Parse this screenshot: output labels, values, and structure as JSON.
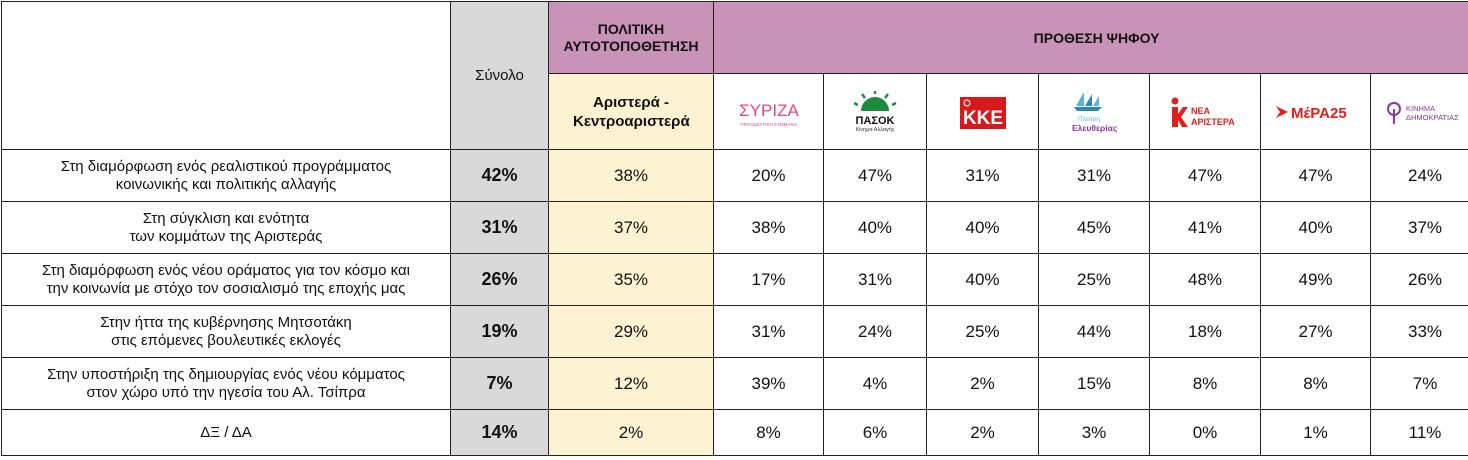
{
  "header": {
    "total_label": "Σύνολο",
    "political_group_label": "ΠΟΛΙΤΙΚΗ ΑΥΤΟΤΟΠΟΘΕΤΗΣΗ",
    "political_sub_label": "Αριστερά - Κεντροαριστερά",
    "vote_group_label": "ΠΡΟΘΕΣΗ ΨΗΦΟΥ"
  },
  "parties": [
    {
      "name": "ΣΥΡΙΖΑ",
      "logo_text": "ΣΥΡΙΖΑ",
      "logo_sub": "ΠΡΟΟΔΕΥΤΙΚΗ ΣΥΜΜΑΧΙΑ",
      "color": "#e8477c",
      "icon": "syriza-logo"
    },
    {
      "name": "ΠΑΣΟΚ",
      "logo_text": "ΠΑΣΟΚ",
      "logo_sub": "Κίνημα Αλλαγής",
      "color": "#1f8a3b",
      "icon": "pasok-sun-logo"
    },
    {
      "name": "ΚΚΕ",
      "logo_text": "ΚΚΕ",
      "color": "#d7191c",
      "icon": "kke-hammer-sickle-logo"
    },
    {
      "name": "Πλεύση Ελευθερίας",
      "logo_text": "Ελευθερίας",
      "logo_sub": "Πλεύση",
      "color": "#5ab5d6",
      "icon": "plefsi-ship-logo"
    },
    {
      "name": "ΝΕΑ ΑΡΙΣΤΕΡΑ",
      "logo_text": "ΑΡΙΣΤΕΡΑ",
      "logo_sub": "ΝΕΑ",
      "color": "#e0201b",
      "icon": "nea-aristera-logo"
    },
    {
      "name": "ΜέΡΑ25",
      "logo_text": "ΜέΡΑ25",
      "color": "#e0201b",
      "icon": "mera25-logo"
    },
    {
      "name": "Κίνημα Δημοκρατίας",
      "logo_text": "ΚΙΝΗΜΑ",
      "logo_sub": "ΔΗΜΟΚΡΑΤΙΑΣ",
      "color": "#8e3aa0",
      "icon": "kinima-dimokratias-logo"
    }
  ],
  "rows": [
    {
      "label_l1": "Στη διαμόρφωση ενός ρεαλιστικού προγράμματος",
      "label_l2": "κοινωνικής και πολιτικής αλλαγής",
      "total": "42%",
      "left": "38%",
      "values": [
        "20%",
        "47%",
        "31%",
        "31%",
        "47%",
        "47%",
        "24%"
      ]
    },
    {
      "label_l1": "Στη σύγκλιση και ενότητα",
      "label_l2": "των κομμάτων της Αριστεράς",
      "total": "31%",
      "left": "37%",
      "values": [
        "38%",
        "40%",
        "40%",
        "45%",
        "41%",
        "40%",
        "37%"
      ]
    },
    {
      "label_l1": "Στη διαμόρφωση ενός νέου οράματος για τον κόσμο και",
      "label_l2": "την κοινωνία με στόχο τον σοσιαλισμό της εποχής μας",
      "total": "26%",
      "left": "35%",
      "values": [
        "17%",
        "31%",
        "40%",
        "25%",
        "48%",
        "49%",
        "26%"
      ]
    },
    {
      "label_l1": "Στην ήττα της κυβέρνησης Μητσοτάκη",
      "label_l2": "στις επόμενες βουλευτικές εκλογές",
      "total": "19%",
      "left": "29%",
      "values": [
        "31%",
        "24%",
        "25%",
        "44%",
        "18%",
        "27%",
        "33%"
      ]
    },
    {
      "label_l1": "Στην υποστήριξη της δημιουργίας ενός νέου κόμματος",
      "label_l2": "στον χώρο υπό την ηγεσία του Αλ. Τσίπρα",
      "total": "7%",
      "left": "12%",
      "values": [
        "39%",
        "4%",
        "2%",
        "15%",
        "8%",
        "8%",
        "7%"
      ]
    },
    {
      "label_l1": "ΔΞ / ΔΑ",
      "label_l2": "",
      "total": "14%",
      "left": "2%",
      "values": [
        "8%",
        "6%",
        "2%",
        "3%",
        "0%",
        "1%",
        "11%"
      ]
    }
  ],
  "colors": {
    "header_purple": "#c993b8",
    "total_grey": "#d9d9d9",
    "left_cream": "#fdf3d3"
  },
  "chart_data": {
    "type": "table",
    "columns": [
      "Σύνολο",
      "Αριστερά - Κεντροαριστερά",
      "ΣΥΡΙΖΑ",
      "ΠΑΣΟΚ",
      "ΚΚΕ",
      "Πλεύση Ελευθερίας",
      "ΝΕΑ ΑΡΙΣΤΕΡΑ",
      "ΜέΡΑ25",
      "Κίνημα Δημοκρατίας"
    ],
    "row_labels": [
      "Στη διαμόρφωση ενός ρεαλιστικού προγράμματος κοινωνικής και πολιτικής αλλαγής",
      "Στη σύγκλιση και ενότητα των κομμάτων της Αριστεράς",
      "Στη διαμόρφωση ενός νέου οράματος για τον κόσμο και την κοινωνία με στόχο τον σοσιαλισμό της εποχής μας",
      "Στην ήττα της κυβέρνησης Μητσοτάκη στις επόμενες βουλευτικές εκλογές",
      "Στην υποστήριξη της δημιουργίας ενός νέου κόμματος στον χώρο υπό την ηγεσία του Αλ. Τσίπρα",
      "ΔΞ / ΔΑ"
    ],
    "values": [
      [
        42,
        38,
        20,
        47,
        31,
        31,
        47,
        47,
        24
      ],
      [
        31,
        37,
        38,
        40,
        40,
        45,
        41,
        40,
        37
      ],
      [
        26,
        35,
        17,
        31,
        40,
        25,
        48,
        49,
        26
      ],
      [
        19,
        29,
        31,
        24,
        25,
        44,
        18,
        27,
        33
      ],
      [
        7,
        12,
        39,
        4,
        2,
        15,
        8,
        8,
        7
      ],
      [
        14,
        2,
        8,
        6,
        2,
        3,
        0,
        1,
        11
      ]
    ],
    "unit": "%"
  }
}
